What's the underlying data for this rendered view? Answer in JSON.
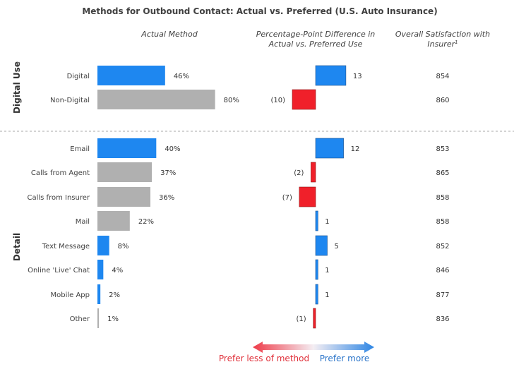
{
  "chart_data": {
    "type": "bar",
    "title": "Methods for Outbound Contact: Actual vs. Preferred (U.S. Auto Insurance)",
    "column_headers": {
      "actual": "Actual Method",
      "difference": [
        "Percentage-Point Difference in",
        "Actual vs. Preferred Use"
      ],
      "satisfaction": [
        "Overall Satisfaction with",
        "Insurer"
      ],
      "satisfaction_footnote": "1"
    },
    "groups": [
      {
        "label": "Digital Use",
        "rows": [
          {
            "category": "Digital",
            "actual": 46,
            "actual_label": "46%",
            "diff": 13,
            "diff_label": "13",
            "satisfaction": 854,
            "highlight": true
          },
          {
            "category": "Non-Digital",
            "actual": 80,
            "actual_label": "80%",
            "diff": -10,
            "diff_label": "(10)",
            "satisfaction": 860,
            "highlight": false
          }
        ]
      },
      {
        "label": "Detail",
        "rows": [
          {
            "category": "Email",
            "actual": 40,
            "actual_label": "40%",
            "diff": 12,
            "diff_label": "12",
            "satisfaction": 853,
            "highlight": true
          },
          {
            "category": "Calls from Agent",
            "actual": 37,
            "actual_label": "37%",
            "diff": -2,
            "diff_label": "(2)",
            "satisfaction": 865,
            "highlight": false
          },
          {
            "category": "Calls from Insurer",
            "actual": 36,
            "actual_label": "36%",
            "diff": -7,
            "diff_label": "(7)",
            "satisfaction": 858,
            "highlight": false
          },
          {
            "category": "Mail",
            "actual": 22,
            "actual_label": "22%",
            "diff": 1,
            "diff_label": "1",
            "satisfaction": 858,
            "highlight": false
          },
          {
            "category": "Text Message",
            "actual": 8,
            "actual_label": "8%",
            "diff": 5,
            "diff_label": "5",
            "satisfaction": 852,
            "highlight": true
          },
          {
            "category": "Online 'Live' Chat",
            "actual": 4,
            "actual_label": "4%",
            "diff": 1,
            "diff_label": "1",
            "satisfaction": 846,
            "highlight": true
          },
          {
            "category": "Mobile App",
            "actual": 2,
            "actual_label": "2%",
            "diff": 1,
            "diff_label": "1",
            "satisfaction": 877,
            "highlight": true
          },
          {
            "category": "Other",
            "actual": 1,
            "actual_label": "1%",
            "diff": -1,
            "diff_label": "(1)",
            "satisfaction": 836,
            "highlight": false
          }
        ]
      }
    ],
    "legend": {
      "less": "Prefer less of method",
      "more": "Prefer more"
    },
    "colors": {
      "highlight": "#1e87f0",
      "neutral": "#b0b0b0",
      "positive": "#1e87f0",
      "negative": "#f0202a",
      "negative_edge": "#8b1a1a",
      "positive_edge": "#1a4f8b",
      "divider": "#aaaaaa"
    }
  }
}
